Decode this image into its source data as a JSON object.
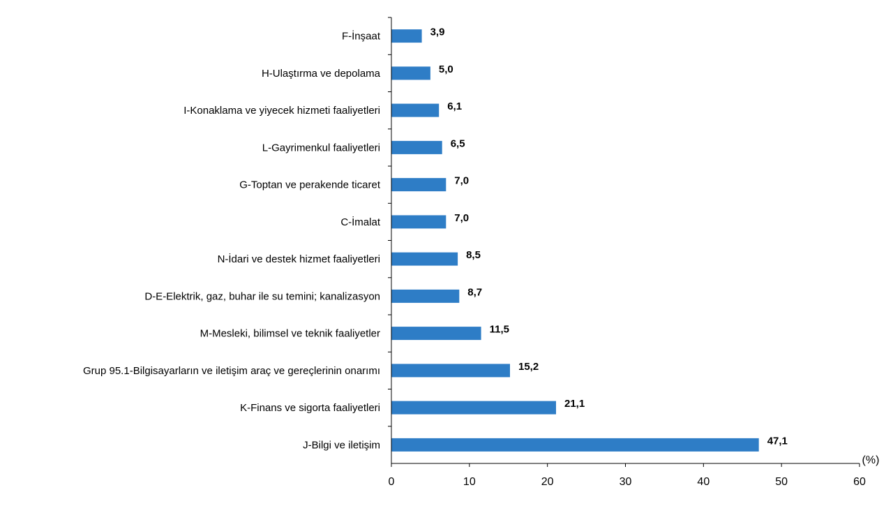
{
  "chart_data": {
    "type": "bar",
    "orientation": "horizontal",
    "categories": [
      "F-İnşaat",
      "H-Ulaştırma ve depolama",
      "I-Konaklama ve yiyecek hizmeti faaliyetleri",
      "L-Gayrimenkul faaliyetleri",
      "G-Toptan ve perakende ticaret",
      "C-İmalat",
      "N-İdari ve destek hizmet faaliyetleri",
      "D-E-Elektrik, gaz, buhar ile su temini; kanalizasyon",
      "M-Mesleki, bilimsel ve teknik faaliyetler",
      "Grup 95.1-Bilgisayarların ve iletişim araç ve gereçlerinin onarımı",
      "K-Finans ve sigorta faaliyetleri",
      "J-Bilgi ve iletişim"
    ],
    "values": [
      3.9,
      5.0,
      6.1,
      6.5,
      7.0,
      7.0,
      8.5,
      8.7,
      11.5,
      15.2,
      21.1,
      47.1
    ],
    "value_labels": [
      "3,9",
      "5,0",
      "6,1",
      "6,5",
      "7,0",
      "7,0",
      "8,5",
      "8,7",
      "11,5",
      "15,2",
      "21,1",
      "47,1"
    ],
    "xlim": [
      0,
      60
    ],
    "xticks": [
      "0",
      "10",
      "20",
      "30",
      "40",
      "50",
      "60"
    ],
    "xunit": "(%)",
    "grid": false,
    "legend": "none",
    "bar_color": "#2e7dc6"
  }
}
